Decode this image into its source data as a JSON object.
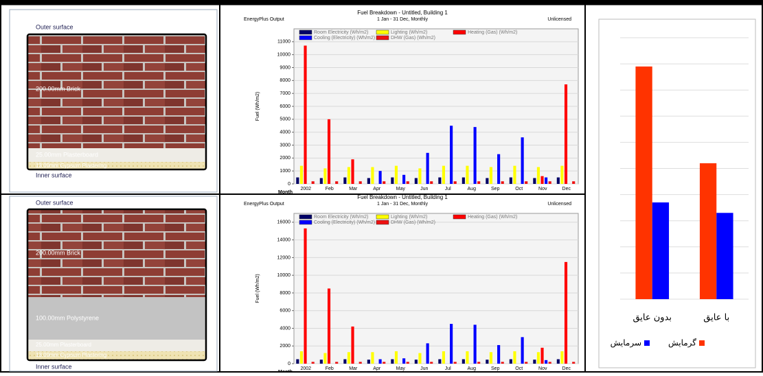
{
  "panels": [
    {
      "outer": "Outer surface",
      "layers": [
        "200.00mm Brick",
        "25.00mm Plasterboard",
        "13.00mm Gypsum Plastering"
      ],
      "inner": "Inner surface"
    },
    {
      "outer": "Outer surface",
      "layers": [
        "200.00mm Brick",
        "100.00mm Polystyrene",
        "25.00mm Plasterboard",
        "13.00mm Gypsum Plastering"
      ],
      "inner": "Inner surface"
    }
  ],
  "chart_data": [
    {
      "type": "bar",
      "title": "Fuel Breakdown - Untitled, Building 1",
      "subtitle": "1 Jan - 31 Dec, Monthly",
      "source": "EnergyPlus Output",
      "license": "Unlicensed",
      "xlabel": "Month",
      "ylabel": "Fuel (Wh/m2)",
      "categories": [
        "2002",
        "Feb",
        "Mar",
        "Apr",
        "May",
        "Jun",
        "Jul",
        "Aug",
        "Sep",
        "Oct",
        "Nov",
        "Dec"
      ],
      "series": [
        {
          "name": "Room Electricity (Wh/m2)",
          "color": "#000066",
          "values": [
            500,
            450,
            500,
            450,
            500,
            450,
            500,
            500,
            450,
            500,
            450,
            500
          ]
        },
        {
          "name": "Lighting (Wh/m2)",
          "color": "#ffff00",
          "values": [
            1400,
            1200,
            1300,
            1300,
            1400,
            1200,
            1400,
            1400,
            1300,
            1400,
            1300,
            1400
          ]
        },
        {
          "name": "Heating (Gas) (Wh/m2)",
          "color": "#ff0000",
          "values": [
            10700,
            5000,
            1900,
            0,
            0,
            0,
            0,
            0,
            0,
            0,
            600,
            7700
          ]
        },
        {
          "name": "Cooling (Electricity) (Wh/m2)",
          "color": "#0000ff",
          "values": [
            0,
            0,
            0,
            1000,
            700,
            2400,
            4500,
            4400,
            2300,
            3600,
            500,
            0
          ]
        },
        {
          "name": "DHW (Gas) (Wh/m2)",
          "color": "#ee1111",
          "values": [
            200,
            200,
            200,
            200,
            200,
            200,
            200,
            200,
            200,
            200,
            200,
            200
          ]
        }
      ],
      "ylim": [
        0,
        12000
      ],
      "yticks": [
        0,
        1000,
        2000,
        3000,
        4000,
        5000,
        6000,
        7000,
        8000,
        9000,
        10000,
        11000
      ],
      "grid": true,
      "legend": "top"
    },
    {
      "type": "bar",
      "title": "Fuel Breakdown - Untitled, Building 1",
      "subtitle": "1 Jan - 31 Dec, Monthly",
      "source": "EnergyPlus Output",
      "license": "Unlicensed",
      "xlabel": "Month",
      "ylabel": "Fuel (Wh/m2)",
      "categories": [
        "2002",
        "Feb",
        "Mar",
        "Apr",
        "May",
        "Jun",
        "Jul",
        "Aug",
        "Sep",
        "Oct",
        "Nov",
        "Dec"
      ],
      "series": [
        {
          "name": "Room Electricity (Wh/m2)",
          "color": "#000066",
          "values": [
            500,
            450,
            500,
            450,
            500,
            450,
            500,
            500,
            450,
            500,
            450,
            500
          ]
        },
        {
          "name": "Lighting (Wh/m2)",
          "color": "#ffff00",
          "values": [
            1400,
            1200,
            1300,
            1300,
            1400,
            1200,
            1400,
            1400,
            1300,
            1400,
            1300,
            1400
          ]
        },
        {
          "name": "Heating (Gas) (Wh/m2)",
          "color": "#ff0000",
          "values": [
            15300,
            8500,
            4200,
            0,
            0,
            0,
            0,
            0,
            0,
            0,
            1800,
            11500
          ]
        },
        {
          "name": "Cooling (Electricity) (Wh/m2)",
          "color": "#0000ff",
          "values": [
            0,
            0,
            0,
            500,
            600,
            2300,
            4500,
            4400,
            2100,
            3000,
            400,
            0
          ]
        },
        {
          "name": "DHW (Gas) (Wh/m2)",
          "color": "#ee1111",
          "values": [
            200,
            200,
            200,
            200,
            200,
            200,
            200,
            200,
            200,
            200,
            200,
            200
          ]
        }
      ],
      "ylim": [
        0,
        17000
      ],
      "yticks": [
        0,
        2000,
        4000,
        6000,
        8000,
        10000,
        12000,
        14000,
        16000
      ],
      "grid": true,
      "legend": "top"
    },
    {
      "type": "bar",
      "categories": [
        "بدون عایق",
        "با عایق"
      ],
      "series": [
        {
          "name": "گرمایش",
          "color": "#ff3300",
          "values": [
            8.9,
            5.2
          ]
        },
        {
          "name": "سرمایش",
          "color": "#0000ff",
          "values": [
            3.7,
            3.3
          ]
        }
      ],
      "ylim": [
        0,
        10
      ],
      "yticks": [
        0,
        1,
        2,
        3,
        4,
        5,
        6,
        7,
        8,
        9,
        10
      ],
      "grid": true,
      "tick_labels": false,
      "legend": "bottom"
    }
  ]
}
